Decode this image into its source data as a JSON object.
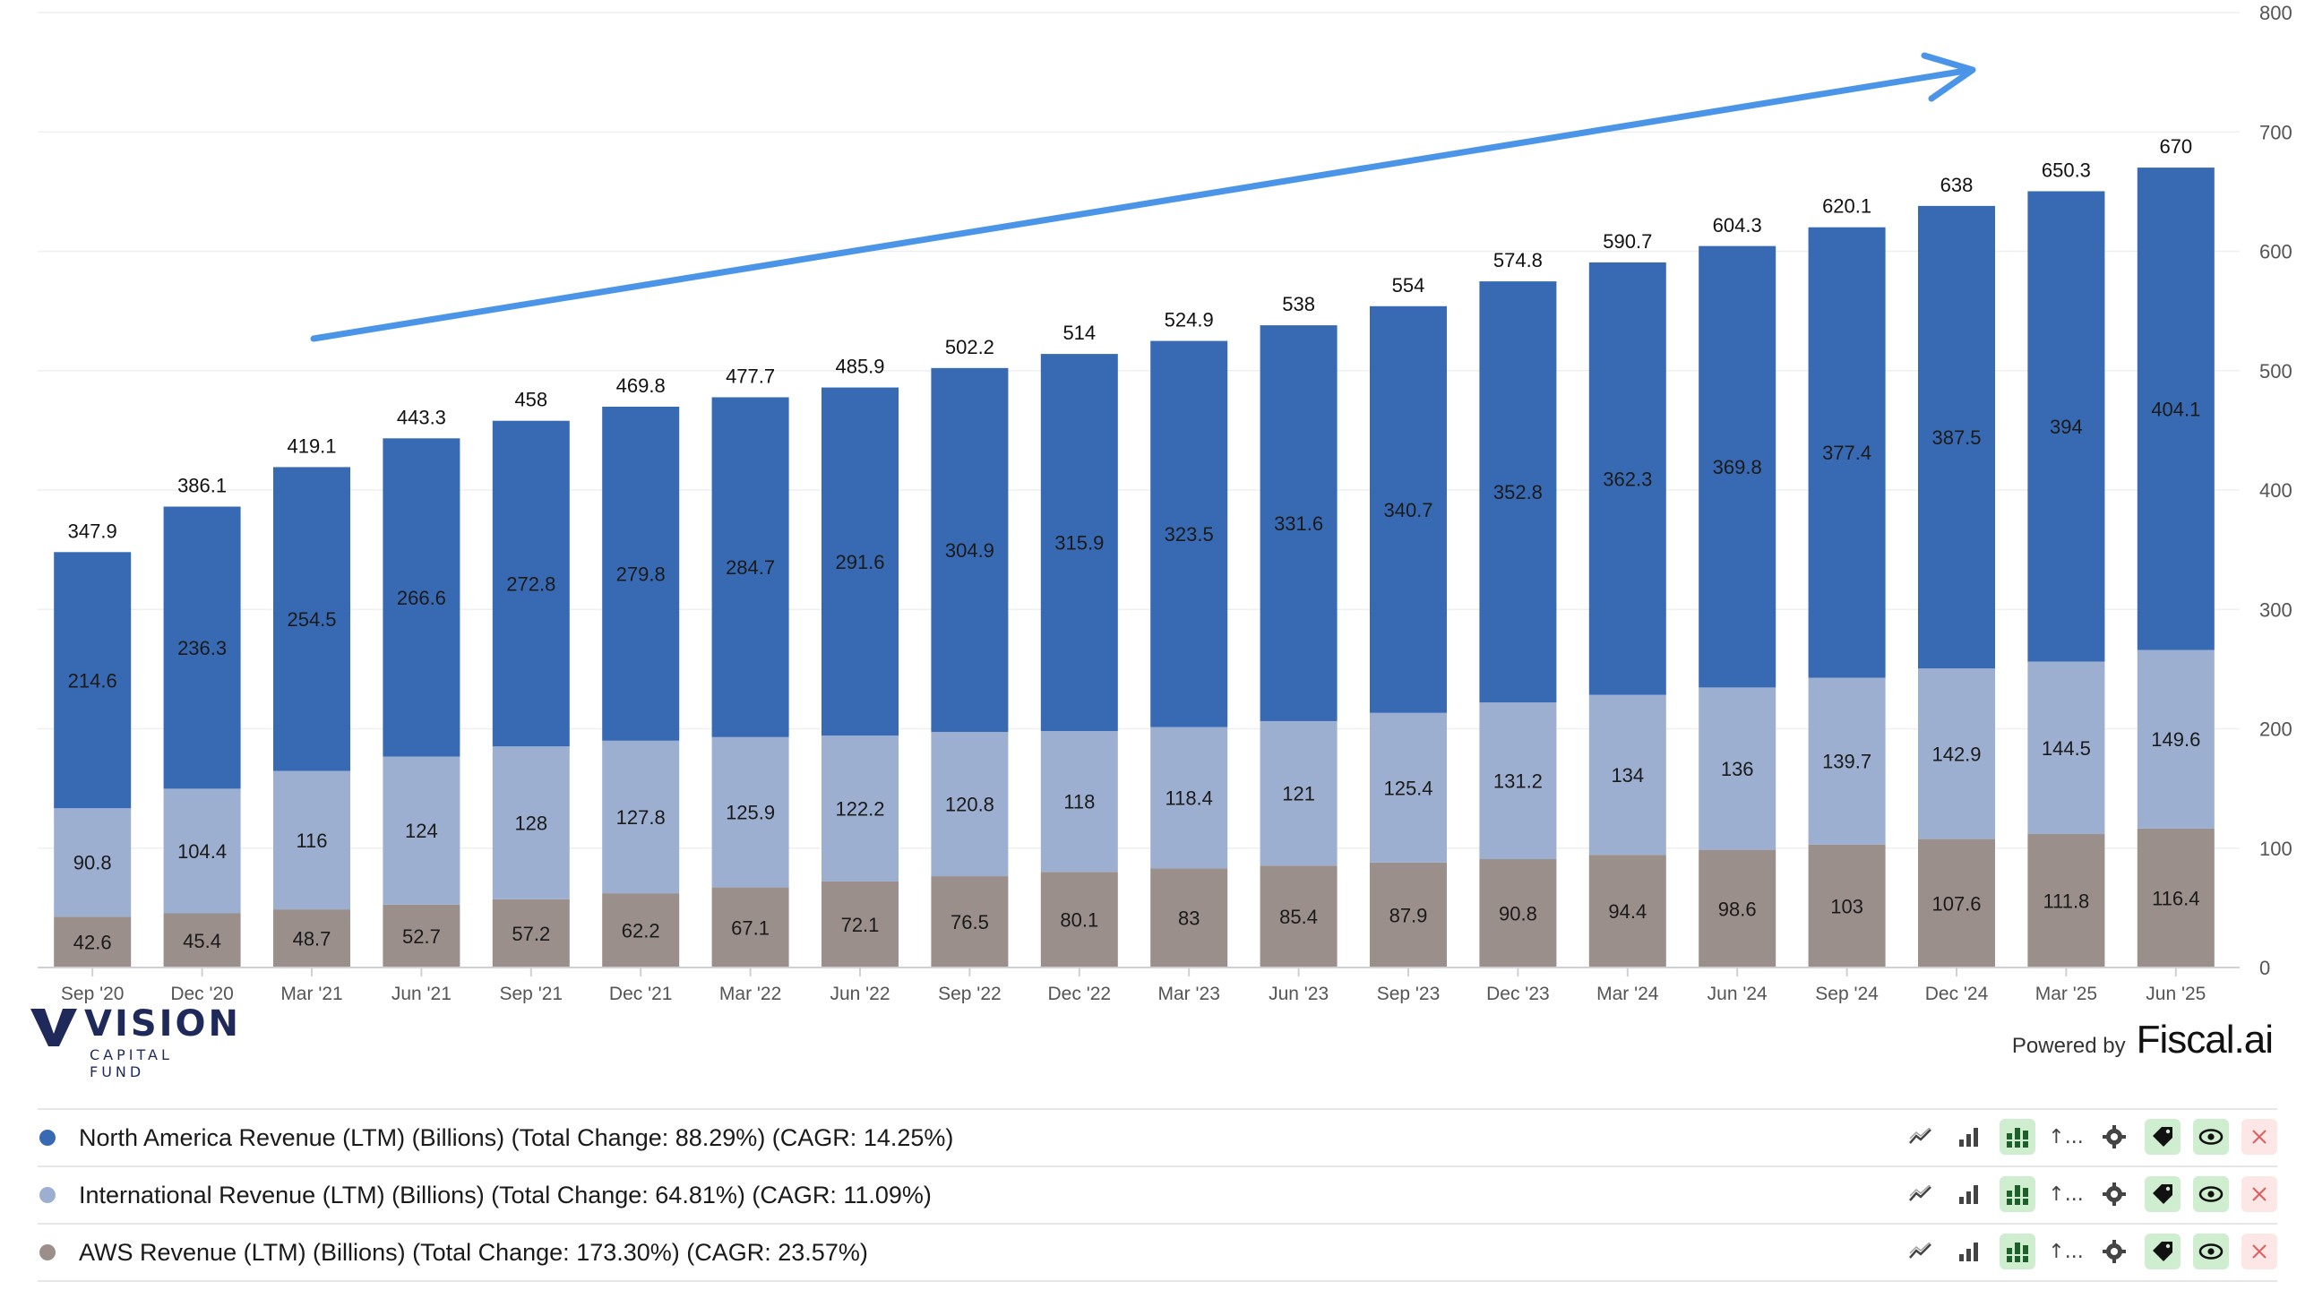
{
  "chart_data": {
    "type": "bar",
    "stacked": true,
    "categories": [
      "Sep '20",
      "Dec '20",
      "Mar '21",
      "Jun '21",
      "Sep '21",
      "Dec '21",
      "Mar '22",
      "Jun '22",
      "Sep '22",
      "Dec '22",
      "Mar '23",
      "Jun '23",
      "Sep '23",
      "Dec '23",
      "Mar '24",
      "Jun '24",
      "Sep '24",
      "Dec '24",
      "Mar '25",
      "Jun '25"
    ],
    "series": [
      {
        "name": "AWS Revenue (LTM) (Billions)",
        "color": "#9b8f8c",
        "values": [
          42.6,
          45.4,
          48.7,
          52.7,
          57.2,
          62.2,
          67.1,
          72.1,
          76.5,
          80.1,
          83,
          85.4,
          87.9,
          90.8,
          94.4,
          98.6,
          103,
          107.6,
          111.8,
          116.4
        ]
      },
      {
        "name": "International Revenue (LTM) (Billions)",
        "color": "#9dafd0",
        "values": [
          90.8,
          104.4,
          116,
          124,
          128,
          127.8,
          125.9,
          122.2,
          120.8,
          118,
          118.4,
          121,
          125.4,
          131.2,
          134,
          136,
          139.7,
          142.9,
          144.5,
          149.6
        ]
      },
      {
        "name": "North America Revenue (LTM) (Billions)",
        "color": "#386ab4",
        "values": [
          214.6,
          236.3,
          254.5,
          266.6,
          272.8,
          279.8,
          284.7,
          291.6,
          304.9,
          315.9,
          323.5,
          331.6,
          340.7,
          352.8,
          362.3,
          369.8,
          377.4,
          387.5,
          394,
          404.1
        ]
      }
    ],
    "totals": [
      347.9,
      386.1,
      419.1,
      443.3,
      458,
      469.8,
      477.7,
      485.9,
      502.2,
      514,
      524.9,
      538,
      554,
      574.8,
      590.7,
      604.3,
      620.1,
      638,
      650.3,
      670
    ],
    "y_ticks": [
      0,
      100,
      200,
      300,
      400,
      500,
      600,
      700,
      800
    ],
    "ylim": [
      0,
      800
    ],
    "y_axis_side": "right",
    "trend_arrow_color": "#4b95e8",
    "grid": true
  },
  "branding": {
    "logo_text": "VISION",
    "logo_sub": "CAPITAL FUND",
    "powered_by": "Powered by",
    "provider": "Fiscal.ai"
  },
  "legend": [
    {
      "label": "North America Revenue (LTM) (Billions) (Total Change: 88.29%) (CAGR: 14.25%)",
      "color": "#386ab4"
    },
    {
      "label": "International Revenue (LTM) (Billions) (Total Change: 64.81%) (CAGR: 11.09%)",
      "color": "#9dafd0"
    },
    {
      "label": "AWS Revenue (LTM) (Billions) (Total Change: 173.30%) (CAGR: 23.57%)",
      "color": "#9b8f8c"
    }
  ],
  "tools": {
    "sort_label": "↑..."
  }
}
